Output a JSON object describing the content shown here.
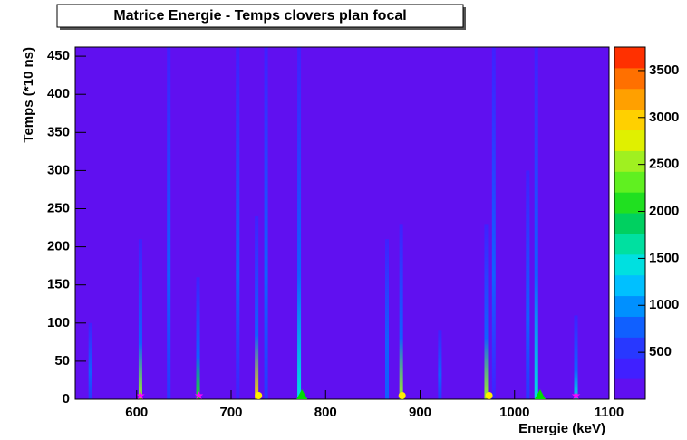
{
  "chart_data": {
    "type": "heatmap",
    "title": "Matrice Energie - Temps clovers plan focal",
    "x_label": "Energie (keV)",
    "y_label": "Temps (*10 ns)",
    "xlim": [
      535,
      1100
    ],
    "xticks": [
      600,
      700,
      800,
      900,
      1000,
      1100
    ],
    "ylim": [
      0,
      462
    ],
    "yticks": [
      0,
      50,
      100,
      150,
      200,
      250,
      300,
      350,
      400,
      450
    ],
    "zlim": [
      0,
      3750
    ],
    "zticks": [
      500,
      1000,
      1500,
      2000,
      2500,
      3000,
      3500
    ],
    "colors": [
      "#6010f0",
      "#4020ff",
      "#2838ff",
      "#1060ff",
      "#0090ff",
      "#00c0ff",
      "#00e0e0",
      "#00e0a0",
      "#00d060",
      "#20e020",
      "#60f020",
      "#a0f020",
      "#e0f000",
      "#ffd000",
      "#ffa000",
      "#ff7000",
      "#ff3000"
    ],
    "peaks": {
      "energy": [
        551,
        604,
        634,
        665,
        707,
        727,
        737,
        772,
        865,
        880,
        921,
        970,
        978,
        1014,
        1023,
        1065
      ],
      "tmax": [
        100,
        210,
        462,
        160,
        462,
        240,
        462,
        462,
        210,
        230,
        90,
        230,
        462,
        300,
        462,
        110
      ],
      "counts": [
        600,
        2500,
        500,
        2000,
        400,
        3000,
        600,
        1500,
        700,
        2500,
        500,
        2500,
        400,
        500,
        1500,
        1500
      ]
    },
    "markers": [
      {
        "shape": "star",
        "color": "#ff00ff",
        "x": [
          604,
          666,
          1065
        ]
      },
      {
        "shape": "circle",
        "color": "#ffee00",
        "x": [
          729,
          881,
          973
        ]
      },
      {
        "shape": "triangle",
        "color": "#00dd00",
        "x": [
          775,
          1027
        ]
      }
    ]
  }
}
